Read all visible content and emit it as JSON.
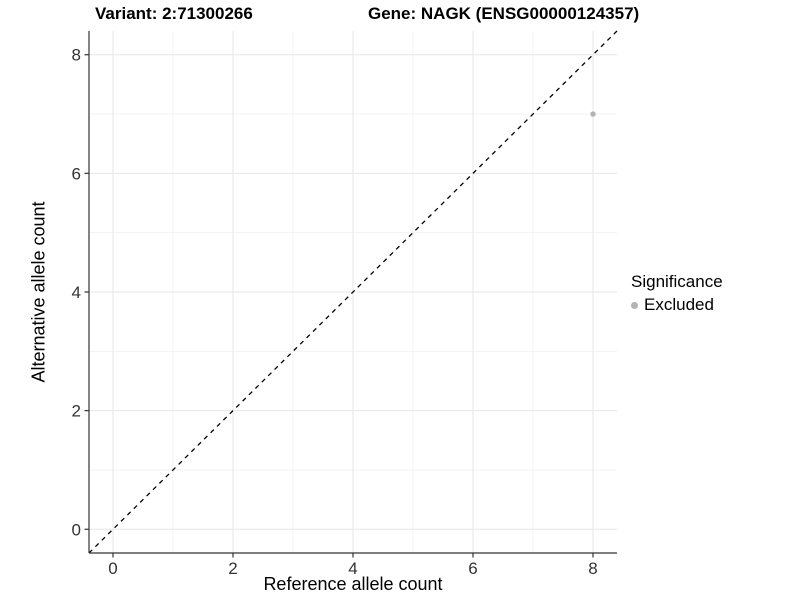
{
  "header": {
    "title_left": "Variant: 2:71300266",
    "title_right": "Gene: NAGK (ENSG00000124357)"
  },
  "legend": {
    "title": "Significance",
    "items": [
      {
        "label": "Excluded",
        "color": "#b3b3b3",
        "marker": "dot-icon"
      }
    ]
  },
  "chart_data": {
    "type": "scatter",
    "title": "Variant: 2:71300266   |   Gene: NAGK (ENSG00000124357)",
    "xlabel": "Reference allele count",
    "ylabel": "Alternative allele count",
    "xlim": [
      -0.4,
      8.4
    ],
    "ylim": [
      -0.4,
      8.4
    ],
    "xticks": [
      0,
      2,
      4,
      6,
      8
    ],
    "yticks": [
      0,
      2,
      4,
      6,
      8
    ],
    "xminor": [
      1,
      3,
      5,
      7
    ],
    "yminor": [
      1,
      3,
      5,
      7
    ],
    "grid": true,
    "legend_position": "right",
    "reference_line": {
      "equation": "y = x",
      "style": "dashed",
      "color": "#000000"
    },
    "series": [
      {
        "name": "Excluded",
        "color": "#b3b3b3",
        "points": [
          {
            "x": 8,
            "y": 7
          }
        ]
      }
    ],
    "colors": {
      "grid_major": "#e7e7e7",
      "grid_minor": "#f3f3f3",
      "axis_line": "#333333",
      "tick_mark": "#333333",
      "tick_label": "#333333"
    }
  }
}
